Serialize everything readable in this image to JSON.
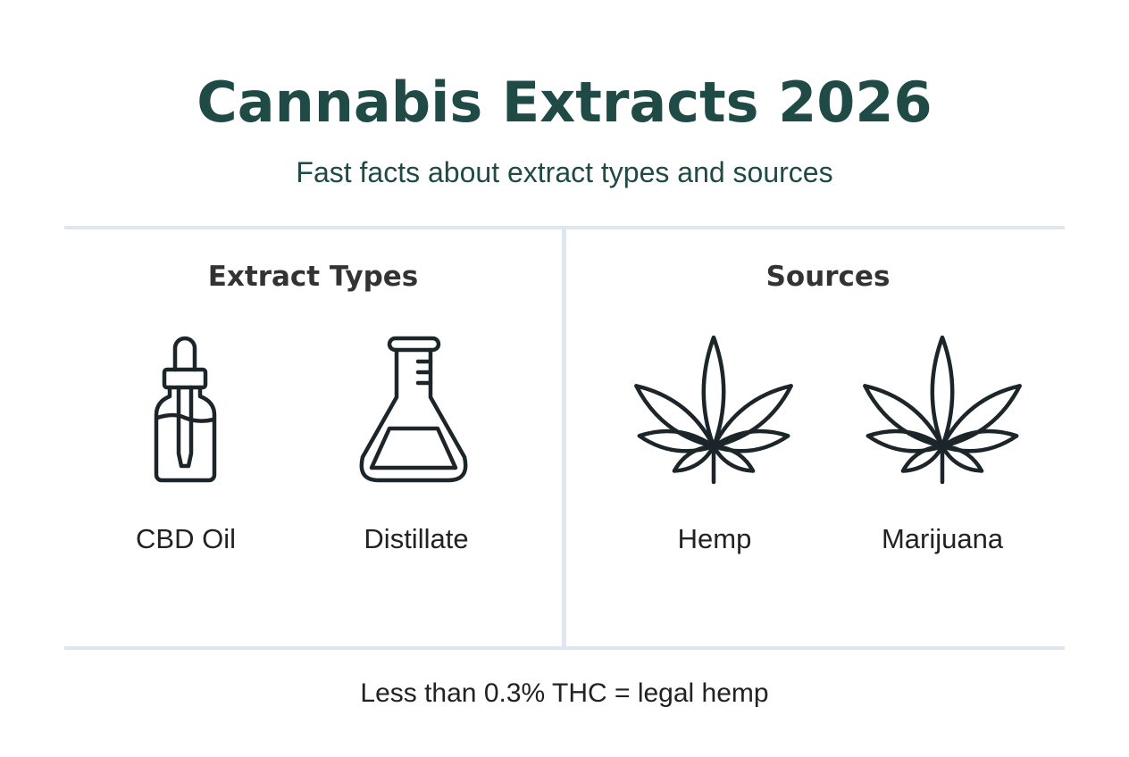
{
  "header": {
    "title": "Cannabis Extracts 2026",
    "subtitle": "Fast facts about extract types and sources"
  },
  "sections": [
    {
      "heading": "Extract Types",
      "items": [
        {
          "label": "CBD Oil",
          "icon": "dropper-bottle-icon"
        },
        {
          "label": "Distillate",
          "icon": "flask-icon"
        }
      ]
    },
    {
      "heading": "Sources",
      "items": [
        {
          "label": "Hemp",
          "icon": "cannabis-leaf-icon"
        },
        {
          "label": "Marijuana",
          "icon": "cannabis-leaf-icon"
        }
      ]
    }
  ],
  "footer": {
    "note": "Less than 0.3% THC = legal hemp"
  },
  "colors": {
    "title": "#1f4a45",
    "divider": "#dfe6ef",
    "icon": "#1c2529"
  }
}
